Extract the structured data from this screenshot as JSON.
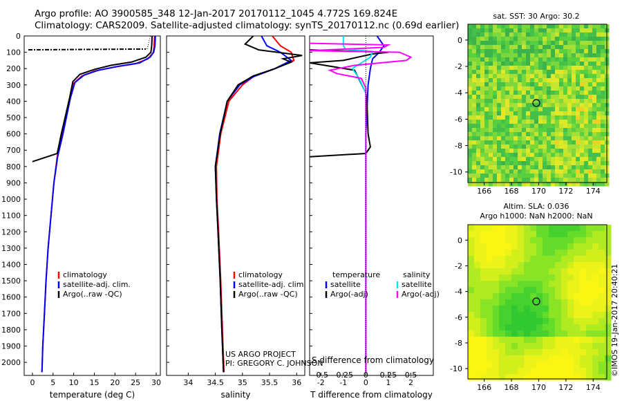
{
  "title": {
    "line1": "Argo profile: AO 3900585_348 12-Jan-2017 20170112_1045 4.772S 169.824E",
    "line2": "Climatology: CARS2009. Satellite-adjusted climatology: synTS_20170112.nc (0.69d earlier)"
  },
  "colors": {
    "climatology": "#ff0000",
    "satellite": "#0000ff",
    "argo": "#000000",
    "sat_salinity": "#00e5ee",
    "argo_salinity": "#ff00ff"
  },
  "chart_data": [
    {
      "type": "line",
      "id": "temperature",
      "xlabel": "temperature (deg C)",
      "ylabel": "",
      "xlim": [
        -2,
        31
      ],
      "ylim": [
        2080,
        0
      ],
      "xticks": [
        0,
        5,
        10,
        15,
        20,
        25,
        30
      ],
      "yticks": [
        0,
        100,
        200,
        300,
        400,
        500,
        600,
        700,
        800,
        900,
        1000,
        1100,
        1200,
        1300,
        1400,
        1500,
        1600,
        1700,
        1800,
        1900,
        2000
      ],
      "legend": [
        "climatology",
        "satellite-adj. clim.",
        "Argo(..raw -QC)"
      ],
      "series": [
        {
          "name": "climatology",
          "color": "#ff0000",
          "points": [
            [
              29.6,
              0
            ],
            [
              29.5,
              60
            ],
            [
              29.3,
              100
            ],
            [
              28,
              140
            ],
            [
              25,
              170
            ],
            [
              20,
              190
            ],
            [
              15,
              215
            ],
            [
              12,
              245
            ],
            [
              10,
              290
            ],
            [
              9,
              380
            ],
            [
              7.2,
              600
            ],
            [
              6,
              740
            ],
            [
              5.2,
              900
            ],
            [
              4.5,
              1100
            ],
            [
              3.8,
              1300
            ],
            [
              3.3,
              1500
            ],
            [
              2.9,
              1700
            ],
            [
              2.5,
              1900
            ],
            [
              2.3,
              2060
            ]
          ]
        },
        {
          "name": "satellite",
          "color": "#0000ff",
          "points": [
            [
              29.8,
              0
            ],
            [
              29.7,
              60
            ],
            [
              29.4,
              100
            ],
            [
              28.5,
              130
            ],
            [
              26,
              165
            ],
            [
              21,
              185
            ],
            [
              16,
              210
            ],
            [
              12.5,
              240
            ],
            [
              10.3,
              285
            ],
            [
              9.2,
              380
            ],
            [
              7.4,
              600
            ],
            [
              6.1,
              740
            ],
            [
              5.2,
              900
            ],
            [
              4.5,
              1100
            ],
            [
              3.8,
              1300
            ],
            [
              3.3,
              1500
            ],
            [
              2.9,
              1700
            ],
            [
              2.5,
              1900
            ],
            [
              2.3,
              2060
            ]
          ]
        },
        {
          "name": "Argo",
          "color": "#000000",
          "points": [
            [
              29,
              0
            ],
            [
              28.9,
              60
            ],
            [
              28.7,
              100
            ],
            [
              27.5,
              130
            ],
            [
              24,
              160
            ],
            [
              19,
              180
            ],
            [
              15,
              205
            ],
            [
              11.5,
              235
            ],
            [
              9.8,
              280
            ],
            [
              9,
              380
            ],
            [
              7,
              600
            ],
            [
              6,
              720
            ],
            [
              0,
              770
            ]
          ]
        },
        {
          "name": "Argo-QC",
          "color": "#000000",
          "dash": "6 2 2 2",
          "points": [
            [
              -1,
              85
            ],
            [
              27.5,
              80
            ]
          ]
        }
      ]
    },
    {
      "type": "line",
      "id": "salinity",
      "xlabel": "salinity",
      "ylabel": "",
      "xlim": [
        33.6,
        36.15
      ],
      "ylim": [
        2080,
        0
      ],
      "xticks": [
        34,
        34.5,
        35,
        35.5,
        36
      ],
      "legend": [
        "climatology",
        "satellite-adj. clim.",
        "Argo(..raw -QC)"
      ],
      "series": [
        {
          "name": "climatology",
          "color": "#ff0000",
          "points": [
            [
              35.55,
              0
            ],
            [
              35.7,
              60
            ],
            [
              35.9,
              100
            ],
            [
              35.95,
              150
            ],
            [
              35.6,
              200
            ],
            [
              35.2,
              250
            ],
            [
              35,
              300
            ],
            [
              34.75,
              400
            ],
            [
              34.6,
              600
            ],
            [
              34.52,
              800
            ],
            [
              34.53,
              1000
            ],
            [
              34.56,
              1200
            ],
            [
              34.6,
              1500
            ],
            [
              34.63,
              1800
            ],
            [
              34.66,
              2060
            ]
          ]
        },
        {
          "name": "satellite",
          "color": "#0000ff",
          "points": [
            [
              35.35,
              0
            ],
            [
              35.45,
              60
            ],
            [
              35.7,
              100
            ],
            [
              35.9,
              150
            ],
            [
              35.6,
              200
            ],
            [
              35.2,
              250
            ],
            [
              34.95,
              300
            ],
            [
              34.72,
              400
            ],
            [
              34.58,
              600
            ],
            [
              34.5,
              800
            ],
            [
              34.52,
              1000
            ],
            [
              34.55,
              1200
            ],
            [
              34.59,
              1500
            ],
            [
              34.62,
              1800
            ],
            [
              34.65,
              2060
            ]
          ]
        },
        {
          "name": "Argo",
          "color": "#000000",
          "points": [
            [
              35.2,
              0
            ],
            [
              35.05,
              50
            ],
            [
              35.3,
              85
            ],
            [
              36.1,
              120
            ],
            [
              35.75,
              140
            ],
            [
              35.9,
              160
            ],
            [
              35.6,
              200
            ],
            [
              35.2,
              245
            ],
            [
              34.92,
              300
            ],
            [
              34.72,
              400
            ],
            [
              34.59,
              600
            ],
            [
              34.5,
              800
            ],
            [
              34.52,
              1000
            ],
            [
              34.55,
              1200
            ],
            [
              34.59,
              1500
            ],
            [
              34.62,
              1800
            ],
            [
              34.65,
              2060
            ]
          ]
        }
      ]
    },
    {
      "type": "line",
      "id": "difference",
      "xlabel": "T difference from climatology",
      "xlabel2": "S difference from climatology",
      "xlim": [
        -2.5,
        3
      ],
      "ylim": [
        2080,
        0
      ],
      "xticks_T": [
        -2,
        -1,
        0,
        1,
        2
      ],
      "xticks_S": [
        -0.5,
        -0.25,
        0,
        0.25,
        0.5
      ],
      "legend": [
        "temperature",
        "satellite",
        "Argo(-adj)",
        "salinity",
        "satellite",
        "Argo(-adj)"
      ],
      "series": [
        {
          "name": "T satellite",
          "color": "#0000ff",
          "points": [
            [
              0.5,
              0
            ],
            [
              0.8,
              60
            ],
            [
              0.6,
              100
            ],
            [
              0.3,
              140
            ],
            [
              0.2,
              200
            ],
            [
              0.1,
              300
            ],
            [
              0,
              600
            ],
            [
              0,
              2060
            ]
          ]
        },
        {
          "name": "T Argo",
          "color": "#000000",
          "points": [
            [
              -2.5,
              85
            ],
            [
              1,
              100
            ],
            [
              0.3,
              110
            ],
            [
              -1,
              150
            ],
            [
              -2.5,
              165
            ],
            [
              -0.5,
              210
            ],
            [
              0,
              350
            ],
            [
              0.05,
              400
            ],
            [
              0.1,
              600
            ],
            [
              0.2,
              680
            ],
            [
              0,
              720
            ],
            [
              -2.5,
              740
            ]
          ]
        },
        {
          "name": "S satellite",
          "color": "#00e5ee",
          "points": [
            [
              -1,
              0
            ],
            [
              -1,
              60
            ],
            [
              -0.9,
              80
            ],
            [
              0.3,
              95
            ],
            [
              0.2,
              130
            ],
            [
              -0.6,
              200
            ],
            [
              -0.3,
              260
            ],
            [
              0,
              350
            ],
            [
              0,
              2060
            ]
          ]
        },
        {
          "name": "S Argo",
          "color": "#ff00ff",
          "points": [
            [
              -2.5,
              45
            ],
            [
              1,
              55
            ],
            [
              0.8,
              70
            ],
            [
              -2.5,
              90
            ],
            [
              1.5,
              100
            ],
            [
              2,
              130
            ],
            [
              1.8,
              150
            ],
            [
              -0.5,
              180
            ],
            [
              -1.6,
              210
            ],
            [
              -1.3,
              230
            ],
            [
              -0.2,
              260
            ],
            [
              0,
              320
            ],
            [
              0,
              2060
            ]
          ]
        }
      ]
    }
  ],
  "maps": {
    "sst": {
      "title": "sat. SST: 30 Argo: 30.2",
      "xticks": [
        "166",
        "168",
        "170",
        "172",
        "174"
      ],
      "yticks": [
        "0",
        "-2",
        "-4",
        "-6",
        "-8",
        "-10"
      ],
      "argo_lon": 169.824,
      "argo_lat": -4.772
    },
    "sla": {
      "title1": "Altim. SLA: 0.036",
      "title2": "Argo h1000: NaN h2000: NaN",
      "xticks": [
        "166",
        "168",
        "170",
        "172",
        "174"
      ],
      "yticks": [
        "0",
        "-2",
        "-4",
        "-6",
        "-8",
        "-10"
      ],
      "argo_lon": 169.824,
      "argo_lat": -4.772
    }
  },
  "credit": {
    "line1": "US ARGO PROJECT",
    "line2": "PI: GREGORY C. JOHNSON"
  },
  "stamp": "©IMOS 19-Jan-2017 20:40:21"
}
